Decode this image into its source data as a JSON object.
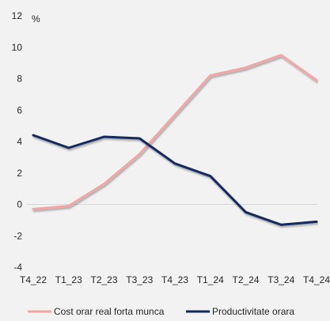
{
  "chart_data": {
    "type": "line",
    "title": "",
    "xlabel": "",
    "ylabel": "%",
    "ylim": [
      -4,
      12
    ],
    "yticks": [
      -4,
      -2,
      0,
      2,
      4,
      6,
      8,
      10,
      12
    ],
    "categories": [
      "T4_22",
      "T1_23",
      "T2_23",
      "T3_23",
      "T4_23",
      "T1_24",
      "T2_24",
      "T3_24",
      "T4_24"
    ],
    "grid": false,
    "legend_position": "bottom",
    "series": [
      {
        "name": "Cost orar real forta munca",
        "color": "#f2a7a7",
        "values": [
          -0.3,
          -0.1,
          1.3,
          3.2,
          5.7,
          8.2,
          8.7,
          9.5,
          7.9
        ]
      },
      {
        "name": "Productivitate orara",
        "color": "#13295e",
        "values": [
          4.4,
          3.6,
          4.3,
          4.2,
          2.6,
          1.8,
          -0.5,
          -1.3,
          -1.1
        ]
      }
    ]
  }
}
